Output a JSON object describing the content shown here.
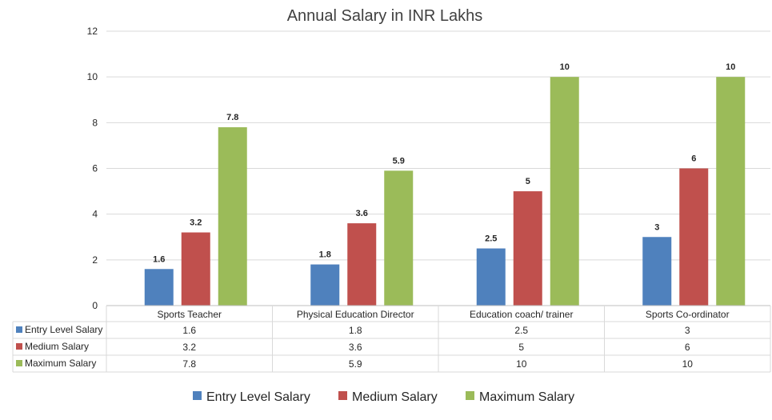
{
  "chart_data": {
    "type": "bar",
    "title": "Annual Salary in INR Lakhs",
    "xlabel": "",
    "ylabel": "",
    "ylim": [
      0,
      12
    ],
    "yticks": [
      0,
      2,
      4,
      6,
      8,
      10,
      12
    ],
    "grid": true,
    "legend_position": "bottom",
    "categories": [
      "Sports Teacher",
      "Physical Education Director",
      "Education coach/ trainer",
      "Sports Co-ordinator"
    ],
    "series": [
      {
        "name": "Entry Level Salary",
        "color": "#4f81bd",
        "values": [
          1.6,
          1.8,
          2.5,
          3
        ]
      },
      {
        "name": "Medium Salary",
        "color": "#c0504d",
        "values": [
          3.2,
          3.6,
          5,
          6
        ]
      },
      {
        "name": "Maximum Salary",
        "color": "#9bbb59",
        "values": [
          7.8,
          5.9,
          10,
          10
        ]
      }
    ],
    "data_table": true
  }
}
